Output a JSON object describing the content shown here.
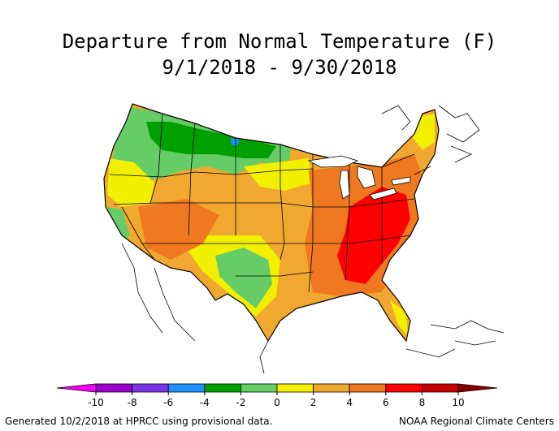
{
  "title": "Departure from Normal Temperature (F)",
  "subtitle": "9/1/2018 - 9/30/2018",
  "legend": {
    "bins": [
      {
        "color": "#ff00ff"
      },
      {
        "color": "#9900cc"
      },
      {
        "color": "#7a33e6"
      },
      {
        "color": "#1e90ff"
      },
      {
        "color": "#00a000"
      },
      {
        "color": "#66cc66"
      },
      {
        "color": "#f0f000"
      },
      {
        "color": "#f0a830"
      },
      {
        "color": "#f07820"
      },
      {
        "color": "#ff0000"
      },
      {
        "color": "#c80000"
      },
      {
        "color": "#8b0000"
      }
    ],
    "ticks": [
      "-10",
      "-8",
      "-6",
      "-4",
      "-2",
      "0",
      "2",
      "4",
      "6",
      "8",
      "10"
    ]
  },
  "footer": {
    "left": "Generated 10/2/2018 at HPRCC using provisional data.",
    "right": "NOAA Regional Climate Centers"
  }
}
